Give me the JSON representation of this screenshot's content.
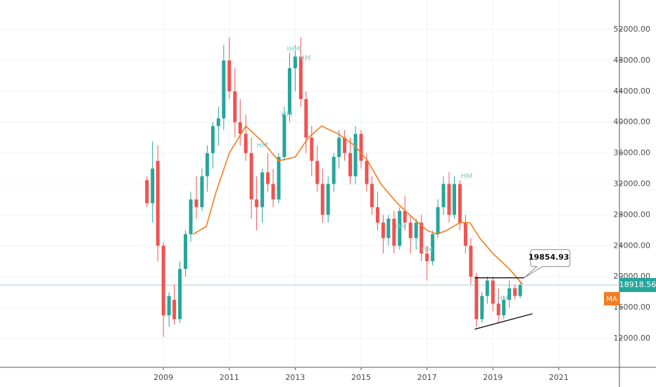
{
  "chart_data": {
    "type": "candlestick",
    "xlim": [
      2004.04,
      2022.84
    ],
    "ylim": [
      8264,
      55827
    ],
    "xticks": [
      2009,
      2011,
      2013,
      2015,
      2017,
      2019,
      2021
    ],
    "yticks": [
      {
        "value": 12000,
        "label": "12000.00"
      },
      {
        "value": 16000,
        "label": "16000.00"
      },
      {
        "value": 20000,
        "label": "20000.00"
      },
      {
        "value": 24000,
        "label": "24000.00"
      },
      {
        "value": 28000,
        "label": "28000.00"
      },
      {
        "value": 32000,
        "label": "32000.00"
      },
      {
        "value": 36000,
        "label": "36000.00"
      },
      {
        "value": 40000,
        "label": "40000.00"
      },
      {
        "value": 44000,
        "label": "44000.00"
      },
      {
        "value": 48000,
        "label": "48000.00"
      },
      {
        "value": 52000,
        "label": "52000.00"
      }
    ],
    "grid": true,
    "up_color": "#26a69a",
    "down_color": "#ef5350",
    "x": [
      2008.5,
      2008.67,
      2008.83,
      2009.0,
      2009.17,
      2009.33,
      2009.5,
      2009.67,
      2009.83,
      2010.0,
      2010.17,
      2010.33,
      2010.5,
      2010.67,
      2010.83,
      2011.0,
      2011.17,
      2011.33,
      2011.5,
      2011.67,
      2011.83,
      2012.0,
      2012.17,
      2012.33,
      2012.5,
      2012.67,
      2012.83,
      2013.0,
      2013.17,
      2013.33,
      2013.5,
      2013.67,
      2013.83,
      2014.0,
      2014.17,
      2014.33,
      2014.5,
      2014.67,
      2014.83,
      2015.0,
      2015.17,
      2015.33,
      2015.5,
      2015.67,
      2015.83,
      2016.0,
      2016.17,
      2016.33,
      2016.5,
      2016.67,
      2016.83,
      2017.0,
      2017.17,
      2017.33,
      2017.5,
      2017.67,
      2017.83,
      2018.0,
      2018.17,
      2018.33,
      2018.5,
      2018.67,
      2018.83,
      2019.0,
      2019.17,
      2019.33,
      2019.5,
      2019.67,
      2019.83
    ],
    "open": [
      32500,
      29500,
      35000,
      24000,
      15000,
      17000,
      14500,
      21000,
      25500,
      30000,
      29000,
      33000,
      36000,
      39500,
      40500,
      48000,
      44000,
      40000,
      38500,
      36000,
      30000,
      29000,
      33500,
      32000,
      30000,
      35500,
      41000,
      47000,
      48500,
      43000,
      38000,
      35000,
      32000,
      28000,
      32000,
      35500,
      38000,
      36000,
      33000,
      38500,
      35000,
      32000,
      29000,
      27000,
      25000,
      27500,
      24000,
      28500,
      27000,
      25000,
      27000,
      23000,
      22000,
      25500,
      29000,
      32000,
      28000,
      32000,
      27000,
      24000,
      20000,
      14500,
      17500,
      19500,
      16500,
      15000,
      17000,
      18500,
      17500
    ],
    "high": [
      33000,
      37500,
      37000,
      24500,
      18000,
      19000,
      22000,
      26000,
      31000,
      33000,
      34000,
      37000,
      40000,
      42000,
      50000,
      51000,
      47000,
      43000,
      41000,
      38000,
      33000,
      34000,
      36000,
      34000,
      36000,
      42000,
      49000,
      50000,
      51000,
      44000,
      39500,
      37000,
      34000,
      33000,
      36000,
      39000,
      39000,
      38000,
      39500,
      39000,
      36000,
      33000,
      31000,
      28000,
      28000,
      28500,
      29000,
      30500,
      28000,
      27500,
      28000,
      24000,
      26000,
      30000,
      33000,
      33500,
      33000,
      32500,
      28000,
      25000,
      20500,
      18000,
      20000,
      20000,
      18500,
      17500,
      19500,
      19000,
      19300
    ],
    "low": [
      29000,
      27000,
      22000,
      12200,
      13500,
      13800,
      14000,
      20000,
      24500,
      27500,
      28500,
      31000,
      34000,
      37000,
      39000,
      43000,
      38000,
      37000,
      35000,
      27500,
      26000,
      27000,
      31000,
      29000,
      29500,
      35000,
      40000,
      44000,
      42000,
      36000,
      33000,
      31000,
      27000,
      27000,
      31000,
      34000,
      35000,
      32000,
      32000,
      34000,
      31000,
      28000,
      26000,
      23000,
      24000,
      23000,
      23500,
      26000,
      23000,
      23500,
      22000,
      19500,
      21500,
      25000,
      28000,
      27000,
      27500,
      26000,
      23000,
      19000,
      13500,
      14000,
      16500,
      15500,
      14000,
      14500,
      16000,
      17000,
      17200
    ],
    "close": [
      29500,
      34000,
      24000,
      15000,
      17500,
      14500,
      21000,
      25500,
      30000,
      29000,
      33000,
      36000,
      39500,
      40500,
      48000,
      44000,
      40000,
      38500,
      36000,
      30000,
      29000,
      33500,
      32000,
      30000,
      35500,
      41000,
      47000,
      48500,
      43000,
      38000,
      35000,
      32000,
      28000,
      32000,
      35500,
      38000,
      36000,
      33000,
      38500,
      35000,
      32000,
      29000,
      27000,
      25000,
      27500,
      24000,
      28500,
      27000,
      25000,
      27000,
      23000,
      22000,
      25500,
      29000,
      32000,
      28000,
      32000,
      27000,
      24000,
      20000,
      14500,
      17500,
      19500,
      16500,
      15000,
      17000,
      18500,
      17500,
      18919
    ],
    "ma": {
      "name": "MA",
      "color": "#f57c1f",
      "x": [
        2009.9,
        2010.3,
        2010.6,
        2011.0,
        2011.5,
        2012.0,
        2012.5,
        2013.0,
        2013.4,
        2013.8,
        2014.3,
        2014.8,
        2015.2,
        2015.6,
        2016.1,
        2016.6,
        2017.0,
        2017.3,
        2017.6,
        2018.0,
        2018.3,
        2018.6,
        2019.0,
        2019.5,
        2019.9
      ],
      "values": [
        25500,
        26500,
        31000,
        36000,
        39500,
        37500,
        35000,
        35500,
        38000,
        39500,
        38500,
        37000,
        35000,
        32000,
        29500,
        27500,
        26000,
        25500,
        26000,
        27000,
        27000,
        25000,
        23000,
        21000,
        19000
      ]
    },
    "last_price": {
      "value": 18918.56,
      "label": "18918.56"
    },
    "callout": {
      "value": 19854.93,
      "label": "19854.93",
      "x": 2019.95
    },
    "trendlines": [
      {
        "x": [
          2018.45,
          2019.95
        ],
        "values": [
          19850,
          19850
        ]
      },
      {
        "x": [
          2018.45,
          2020.2
        ],
        "values": [
          13200,
          15200
        ]
      }
    ],
    "patterns": [
      {
        "text": "IHM",
        "x": 2012.95,
        "y": 49500
      },
      {
        "text": "HM",
        "x": 2013.3,
        "y": 48300
      },
      {
        "text": "HM",
        "x": 2012.75,
        "y": 41000
      },
      {
        "text": "HM",
        "x": 2012.0,
        "y": 37000
      },
      {
        "text": "HM",
        "x": 2018.2,
        "y": 33000
      },
      {
        "text": "HM",
        "x": 2016.2,
        "y": 26500
      },
      {
        "text": "HM",
        "x": 2017.0,
        "y": 23500
      },
      {
        "text": "HM",
        "x": 2019.3,
        "y": 17200
      }
    ]
  }
}
